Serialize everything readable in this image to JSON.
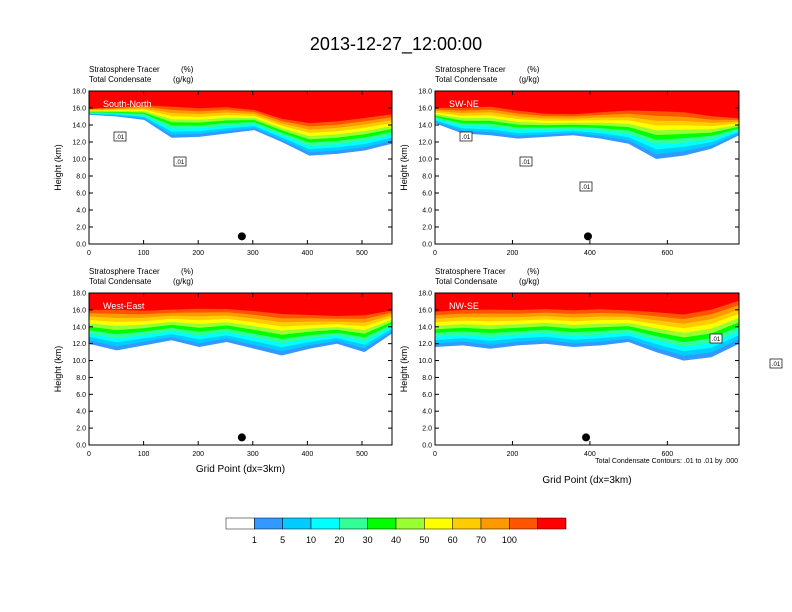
{
  "figure": {
    "title": "2013-12-27_12:00:00",
    "contour_note": "Total Condensate Contours: .01 to .01 by .000"
  },
  "chart_data": [
    {
      "type": "heatmap",
      "subtitle_left": "Stratosphere Tracer",
      "subtitle_left_units": "(%)",
      "subtitle_line2": "Total Condensate",
      "subtitle_line2_units": "(g/kg)",
      "panel_label": "South-North",
      "ylabel": "Height (km)",
      "xlabel": "",
      "xlim": [
        0,
        555
      ],
      "ylim": [
        0,
        18
      ],
      "xticks": [
        0,
        100,
        200,
        300,
        400,
        500
      ],
      "yticks": [
        0.0,
        2.0,
        4.0,
        6.0,
        8.0,
        10.0,
        12.0,
        14.0,
        16.0,
        18.0
      ],
      "marker_x": 280,
      "contour_labels": [
        ".01",
        ".01"
      ],
      "tracer_top_km": [
        16.0,
        16.2,
        16.5,
        16.5,
        16.3,
        16.4,
        16.0,
        15.0,
        14.6,
        14.8,
        15.2,
        15.6
      ],
      "tracer_bottom_km": [
        15.2,
        15.0,
        14.6,
        12.5,
        12.6,
        13.0,
        13.4,
        12.0,
        10.4,
        10.6,
        11.0,
        11.8
      ]
    },
    {
      "type": "heatmap",
      "subtitle_left": "Stratosphere Tracer",
      "subtitle_left_units": "(%)",
      "subtitle_line2": "Total Condensate",
      "subtitle_line2_units": "(g/kg)",
      "panel_label": "SW-NE",
      "ylabel": "Height (km)",
      "xlabel": "",
      "xlim": [
        0,
        785
      ],
      "ylim": [
        0,
        18
      ],
      "xticks": [
        0,
        200,
        400,
        600
      ],
      "yticks": [
        0.0,
        2.0,
        4.0,
        6.0,
        8.0,
        10.0,
        12.0,
        14.0,
        16.0,
        18.0
      ],
      "marker_x": 395,
      "contour_labels": [
        ".01",
        ".01",
        ".01"
      ],
      "tracer_top_km": [
        16.2,
        16.3,
        16.5,
        16.0,
        15.6,
        15.5,
        15.8,
        16.1,
        16.2,
        16.0,
        15.4,
        15.0
      ],
      "tracer_bottom_km": [
        14.2,
        13.0,
        12.8,
        12.4,
        12.6,
        12.8,
        12.4,
        11.8,
        10.0,
        10.4,
        11.2,
        12.8
      ]
    },
    {
      "type": "heatmap",
      "subtitle_left": "Stratosphere Tracer",
      "subtitle_left_units": "(%)",
      "subtitle_line2": "Total Condensate",
      "subtitle_line2_units": "(g/kg)",
      "panel_label": "West-East",
      "ylabel": "Height (km)",
      "xlabel": "Grid Point (dx=3km)",
      "xlim": [
        0,
        555
      ],
      "ylim": [
        0,
        18
      ],
      "xticks": [
        0,
        100,
        200,
        300,
        400,
        500
      ],
      "yticks": [
        0.0,
        2.0,
        4.0,
        6.0,
        8.0,
        10.0,
        12.0,
        14.0,
        16.0,
        18.0
      ],
      "marker_x": 280,
      "contour_labels": [],
      "tracer_top_km": [
        16.4,
        16.5,
        16.3,
        16.4,
        16.6,
        16.5,
        16.3,
        16.0,
        15.8,
        15.6,
        15.8,
        16.2
      ],
      "tracer_bottom_km": [
        12.0,
        11.2,
        11.8,
        12.4,
        11.6,
        12.2,
        11.4,
        10.6,
        11.4,
        12.0,
        11.0,
        13.2
      ]
    },
    {
      "type": "heatmap",
      "subtitle_left": "Stratosphere Tracer",
      "subtitle_left_units": "(%)",
      "subtitle_line2": "Total Condensate",
      "subtitle_line2_units": "(g/kg)",
      "panel_label": "NW-SE",
      "ylabel": "Height (km)",
      "xlabel": "Grid Point (dx=3km)",
      "xlim": [
        0,
        785
      ],
      "ylim": [
        0,
        18
      ],
      "xticks": [
        0,
        200,
        400,
        600
      ],
      "yticks": [
        0.0,
        2.0,
        4.0,
        6.0,
        8.0,
        10.0,
        12.0,
        14.0,
        16.0,
        18.0
      ],
      "marker_x": 390,
      "contour_labels": [
        ".01",
        ".01"
      ],
      "tracer_top_km": [
        16.2,
        16.4,
        16.5,
        16.4,
        16.5,
        16.4,
        16.5,
        16.3,
        16.2,
        16.0,
        16.6,
        17.6
      ],
      "tracer_bottom_km": [
        11.6,
        11.8,
        11.4,
        11.8,
        12.0,
        11.6,
        11.8,
        12.2,
        11.0,
        10.0,
        10.4,
        12.0
      ]
    }
  ],
  "colorbar": {
    "labels": [
      "1",
      "5",
      "10",
      "20",
      "30",
      "40",
      "50",
      "60",
      "70",
      "100"
    ],
    "colors": [
      "#ffffff",
      "#3399ff",
      "#00ccff",
      "#00ffff",
      "#33ff99",
      "#00ff00",
      "#99ff33",
      "#ffff00",
      "#ffcc00",
      "#ff9900",
      "#ff5500",
      "#ff0000"
    ]
  }
}
